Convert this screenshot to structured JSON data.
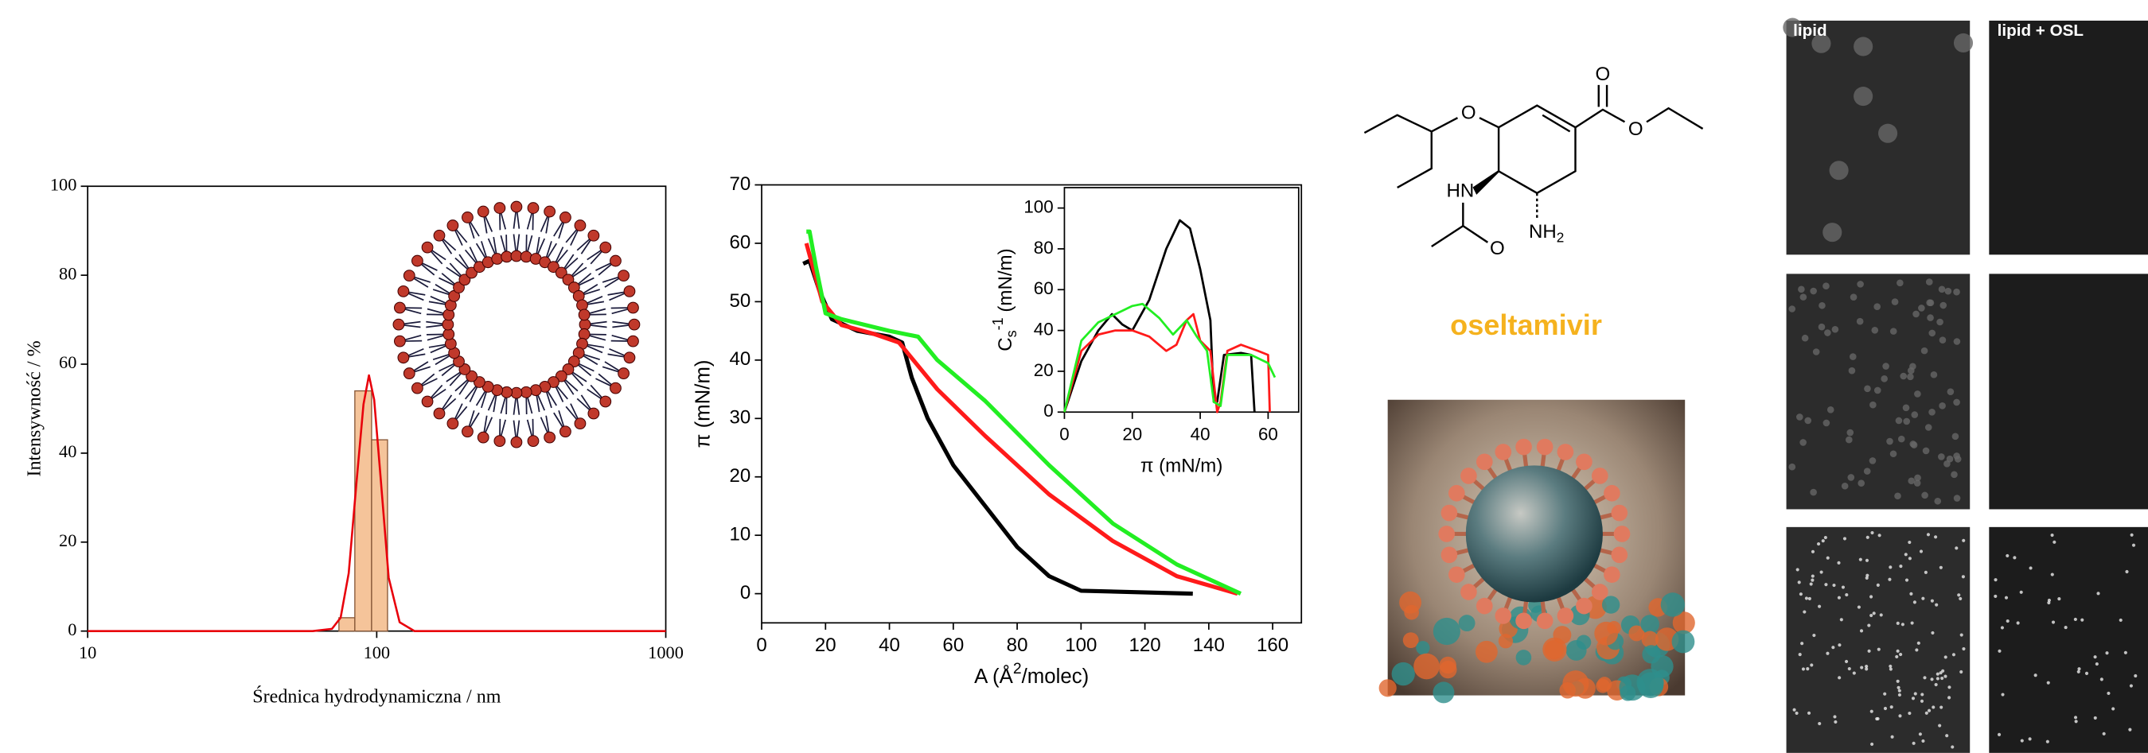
{
  "chart_data": [
    {
      "type": "histogram",
      "xscale": "log",
      "xlim": [
        10,
        1000
      ],
      "xticks": [
        10,
        100,
        1000
      ],
      "ylim": [
        0,
        100
      ],
      "yticks": [
        0,
        20,
        40,
        60,
        80,
        100
      ],
      "xlabel": "Średnica hydrodynamiczna / nm",
      "ylabel": "Intensywność / %",
      "grid": false,
      "bins": [
        74,
        84,
        96,
        109
      ],
      "values": [
        3,
        54,
        43
      ],
      "color": "#f5c49a",
      "fit": {
        "color": "#e8000b",
        "x": [
          10,
          60,
          70,
          75,
          80,
          85,
          90,
          94,
          98,
          103,
          110,
          120,
          135,
          1000
        ],
        "values": [
          0,
          0,
          0.5,
          3,
          13,
          33,
          51,
          57.5,
          52,
          35,
          12,
          2,
          0,
          0
        ]
      }
    },
    {
      "type": "line",
      "xlim": [
        0,
        169
      ],
      "xticks": [
        0,
        20,
        40,
        60,
        80,
        100,
        120,
        140,
        160
      ],
      "ylim": [
        -5,
        70
      ],
      "yticks": [
        0,
        10,
        20,
        30,
        40,
        50,
        60,
        70
      ],
      "grid": false,
      "xlabel": {
        "main": "A (Å",
        "sup": "2",
        "rest": "/molec)"
      },
      "ylabel": "π (mN/m)",
      "series": [
        {
          "color": "#000000",
          "x": [
            135,
            100,
            90,
            80,
            70,
            60,
            52,
            47,
            44,
            40,
            30,
            22,
            18,
            15,
            13
          ],
          "values": [
            0,
            0.5,
            3,
            8,
            15,
            22,
            30,
            37,
            43,
            44,
            45,
            47,
            52,
            57,
            56.5
          ]
        },
        {
          "color": "#ff1a1a",
          "x": [
            149,
            130,
            110,
            90,
            70,
            55,
            46,
            43,
            35,
            25,
            19,
            16,
            14
          ],
          "values": [
            0,
            3,
            9,
            17,
            27,
            35,
            41,
            43,
            44.5,
            46,
            50,
            56,
            60
          ]
        },
        {
          "color": "#22ee22",
          "x": [
            150,
            130,
            110,
            90,
            70,
            55,
            49,
            40,
            25,
            20,
            17,
            15,
            14
          ],
          "values": [
            0,
            5,
            12,
            22,
            33,
            40,
            44,
            45,
            47,
            48,
            56,
            62,
            62
          ]
        }
      ]
    },
    {
      "type": "line",
      "xlim": [
        0,
        69
      ],
      "xticks": [
        0,
        20,
        40,
        60
      ],
      "ylim": [
        0,
        110
      ],
      "yticks": [
        0,
        20,
        40,
        60,
        80,
        100
      ],
      "grid": false,
      "xlabel": "π (mN/m)",
      "ylabel": {
        "main": "C",
        "sub": "s",
        "sup": "-1",
        "rest": " (mN/m)"
      },
      "series": [
        {
          "color": "#000000",
          "x": [
            0,
            5,
            10,
            14,
            17,
            20,
            25,
            30,
            34,
            37,
            40,
            43,
            44,
            45,
            47,
            52,
            55,
            56
          ],
          "values": [
            0,
            25,
            40,
            48,
            43,
            40,
            55,
            80,
            94,
            90,
            70,
            45,
            5,
            5,
            28,
            29,
            28,
            0
          ]
        },
        {
          "color": "#ff1a1a",
          "x": [
            0,
            5,
            10,
            15,
            20,
            25,
            30,
            33,
            36,
            38,
            40,
            43,
            45,
            46,
            48,
            52,
            57,
            60,
            60.5
          ],
          "values": [
            0,
            30,
            38,
            40,
            40,
            37,
            30,
            33,
            45,
            48,
            35,
            30,
            0,
            5,
            30,
            33,
            30,
            28,
            0
          ]
        },
        {
          "color": "#22ee22",
          "x": [
            0,
            5,
            10,
            15,
            20,
            23,
            28,
            32,
            36,
            39,
            42,
            44,
            46,
            48,
            55,
            60,
            62
          ],
          "values": [
            0,
            35,
            44,
            48,
            52,
            53,
            46,
            38,
            45,
            37,
            30,
            5,
            3,
            28,
            28,
            24,
            17
          ]
        }
      ]
    }
  ],
  "structure": {
    "atoms": [
      "O",
      "O",
      "O",
      "HN",
      "O"
    ],
    "amine": {
      "main": "NH",
      "sub": "2"
    }
  },
  "compound_name": "oseltamivir",
  "micrographs": {
    "labels": [
      "lipid",
      "lipid + OSL"
    ]
  }
}
